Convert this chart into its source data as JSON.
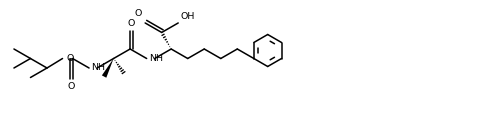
{
  "figsize": [
    4.93,
    1.37
  ],
  "dpi": 100,
  "bg_color": "#ffffff",
  "line_color": "#000000",
  "line_width": 1.1,
  "font_size": 6.8,
  "xlim": [
    0,
    493
  ],
  "ylim": [
    0,
    137
  ]
}
